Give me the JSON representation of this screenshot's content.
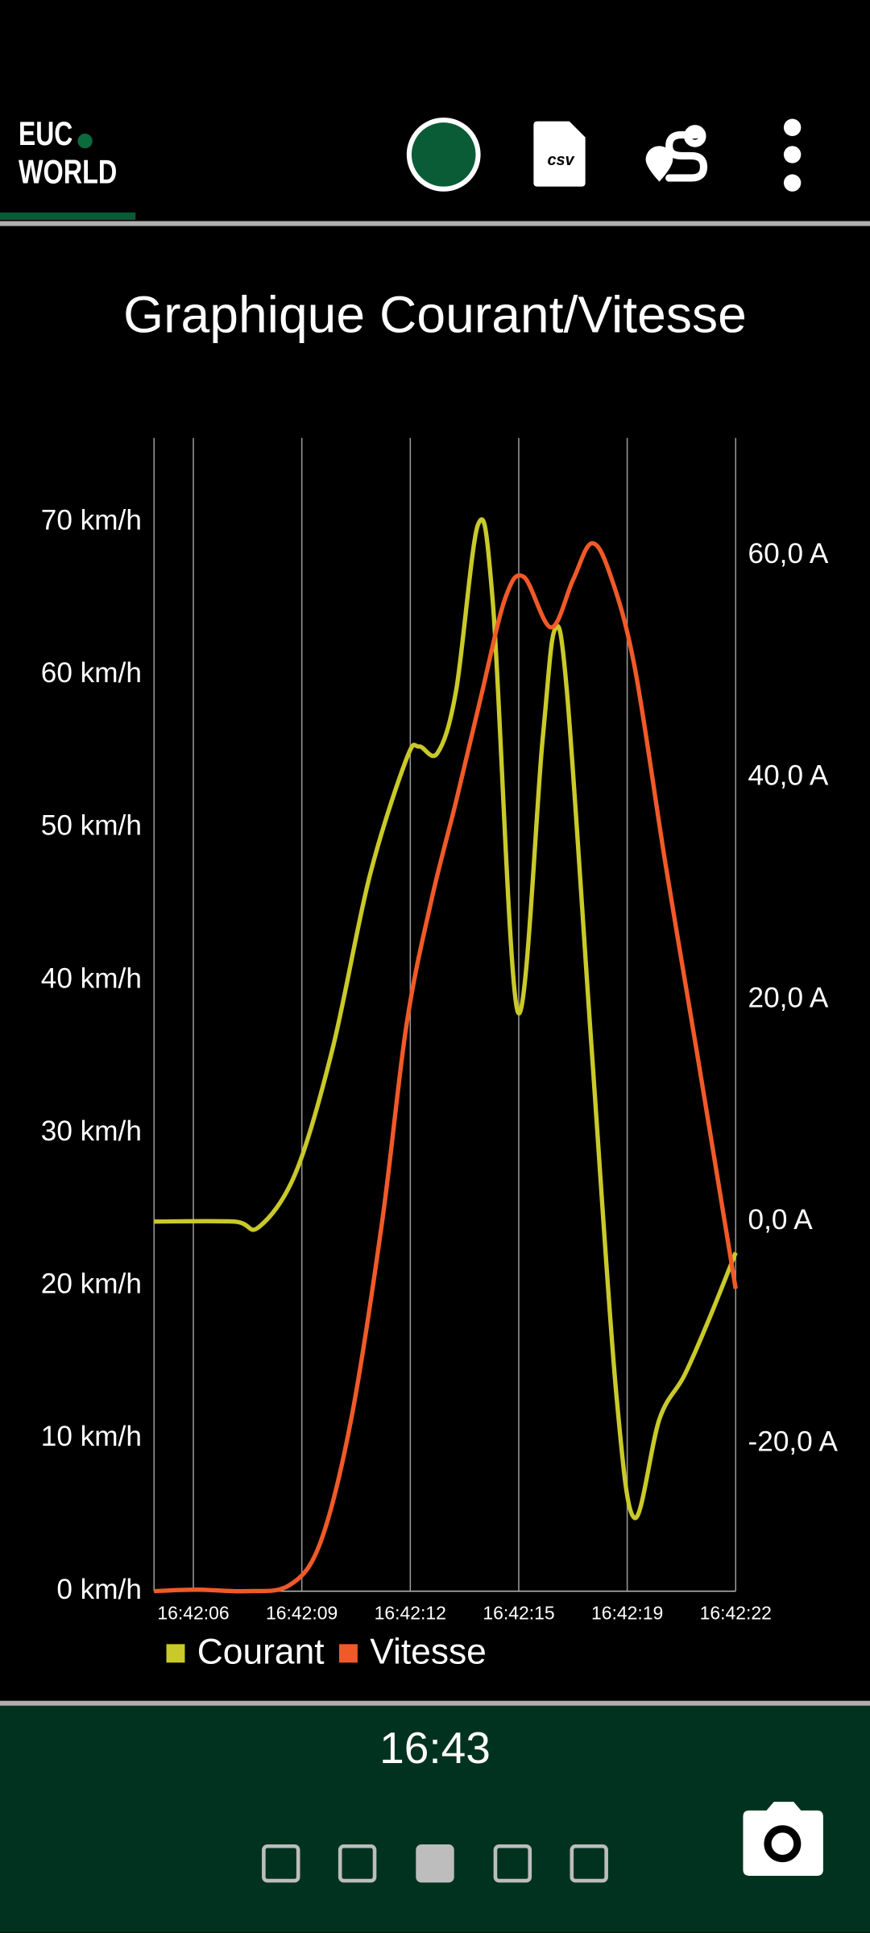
{
  "header": {
    "logo_top": "EUC",
    "logo_bottom": "WORLD",
    "csv_label": "csv"
  },
  "chart_data": {
    "type": "line",
    "title": "Graphique Courant/Vitesse",
    "series": [
      {
        "name": "Courant",
        "color": "#c9c92a",
        "axis": "y2",
        "x": [
          5.04,
          7.4,
          8.13,
          9.22,
          10.31,
          11.4,
          12.49,
          12.86,
          13.4,
          13.95,
          14.6,
          15.04,
          15.77,
          16.5,
          16.86,
          17.22,
          17.95,
          18.68,
          19.22,
          19.95,
          20.68,
          21.4,
          22.2
        ],
        "values": [
          0,
          0,
          -0.5,
          4.4,
          15.6,
          31.1,
          41.7,
          42.8,
          42.2,
          47.8,
          62.8,
          55.6,
          18.9,
          43.3,
          53.3,
          47.8,
          15.6,
          -15.6,
          -26.7,
          -17.8,
          -13.9,
          -8.9,
          -2.8
        ]
      },
      {
        "name": "Vitesse",
        "color": "#f05a28",
        "x": [
          5.04,
          6.31,
          7.77,
          9.04,
          9.95,
          10.86,
          11.77,
          12.49,
          13.22,
          13.95,
          14.68,
          15.4,
          15.95,
          16.75,
          17.4,
          17.95,
          18.49,
          19.22,
          20.13,
          21.04,
          22.2
        ],
        "values": [
          0,
          0.1,
          0,
          0.4,
          3.2,
          11.3,
          24.2,
          37.1,
          45.2,
          51.7,
          58.5,
          65.0,
          66.4,
          63.1,
          66.2,
          68.6,
          66.6,
          60.5,
          47.6,
          35.5,
          19.8
        ]
      }
    ],
    "xlim": [
      5.04,
      22.2
    ],
    "xticks": [
      {
        "value": 6.2,
        "label": "16:42:06"
      },
      {
        "value": 9.4,
        "label": "16:42:09"
      },
      {
        "value": 12.6,
        "label": "16:42:12"
      },
      {
        "value": 15.8,
        "label": "16:42:15"
      },
      {
        "value": 19.0,
        "label": "16:42:19"
      },
      {
        "value": 22.2,
        "label": "16:42:22"
      }
    ],
    "ylim": [
      0,
      75.5
    ],
    "yticks": [
      {
        "value": 0,
        "label": "0 km/h"
      },
      {
        "value": 10,
        "label": "10 km/h"
      },
      {
        "value": 20,
        "label": "20 km/h"
      },
      {
        "value": 30,
        "label": "30 km/h"
      },
      {
        "value": 40,
        "label": "40 km/h"
      },
      {
        "value": 50,
        "label": "50 km/h"
      },
      {
        "value": 60,
        "label": "60 km/h"
      },
      {
        "value": 70,
        "label": "70 km/h"
      }
    ],
    "y2lim": [
      -33.3,
      70.6
    ],
    "y2ticks": [
      {
        "value": -20,
        "label": "-20,0 A"
      },
      {
        "value": 0,
        "label": "0,0 A"
      },
      {
        "value": 20,
        "label": "20,0 A"
      },
      {
        "value": 40,
        "label": "40,0 A"
      },
      {
        "value": 60,
        "label": "60,0 A"
      }
    ],
    "grid": "x",
    "legend": "bottom-left"
  },
  "footer": {
    "time": "16:43"
  }
}
